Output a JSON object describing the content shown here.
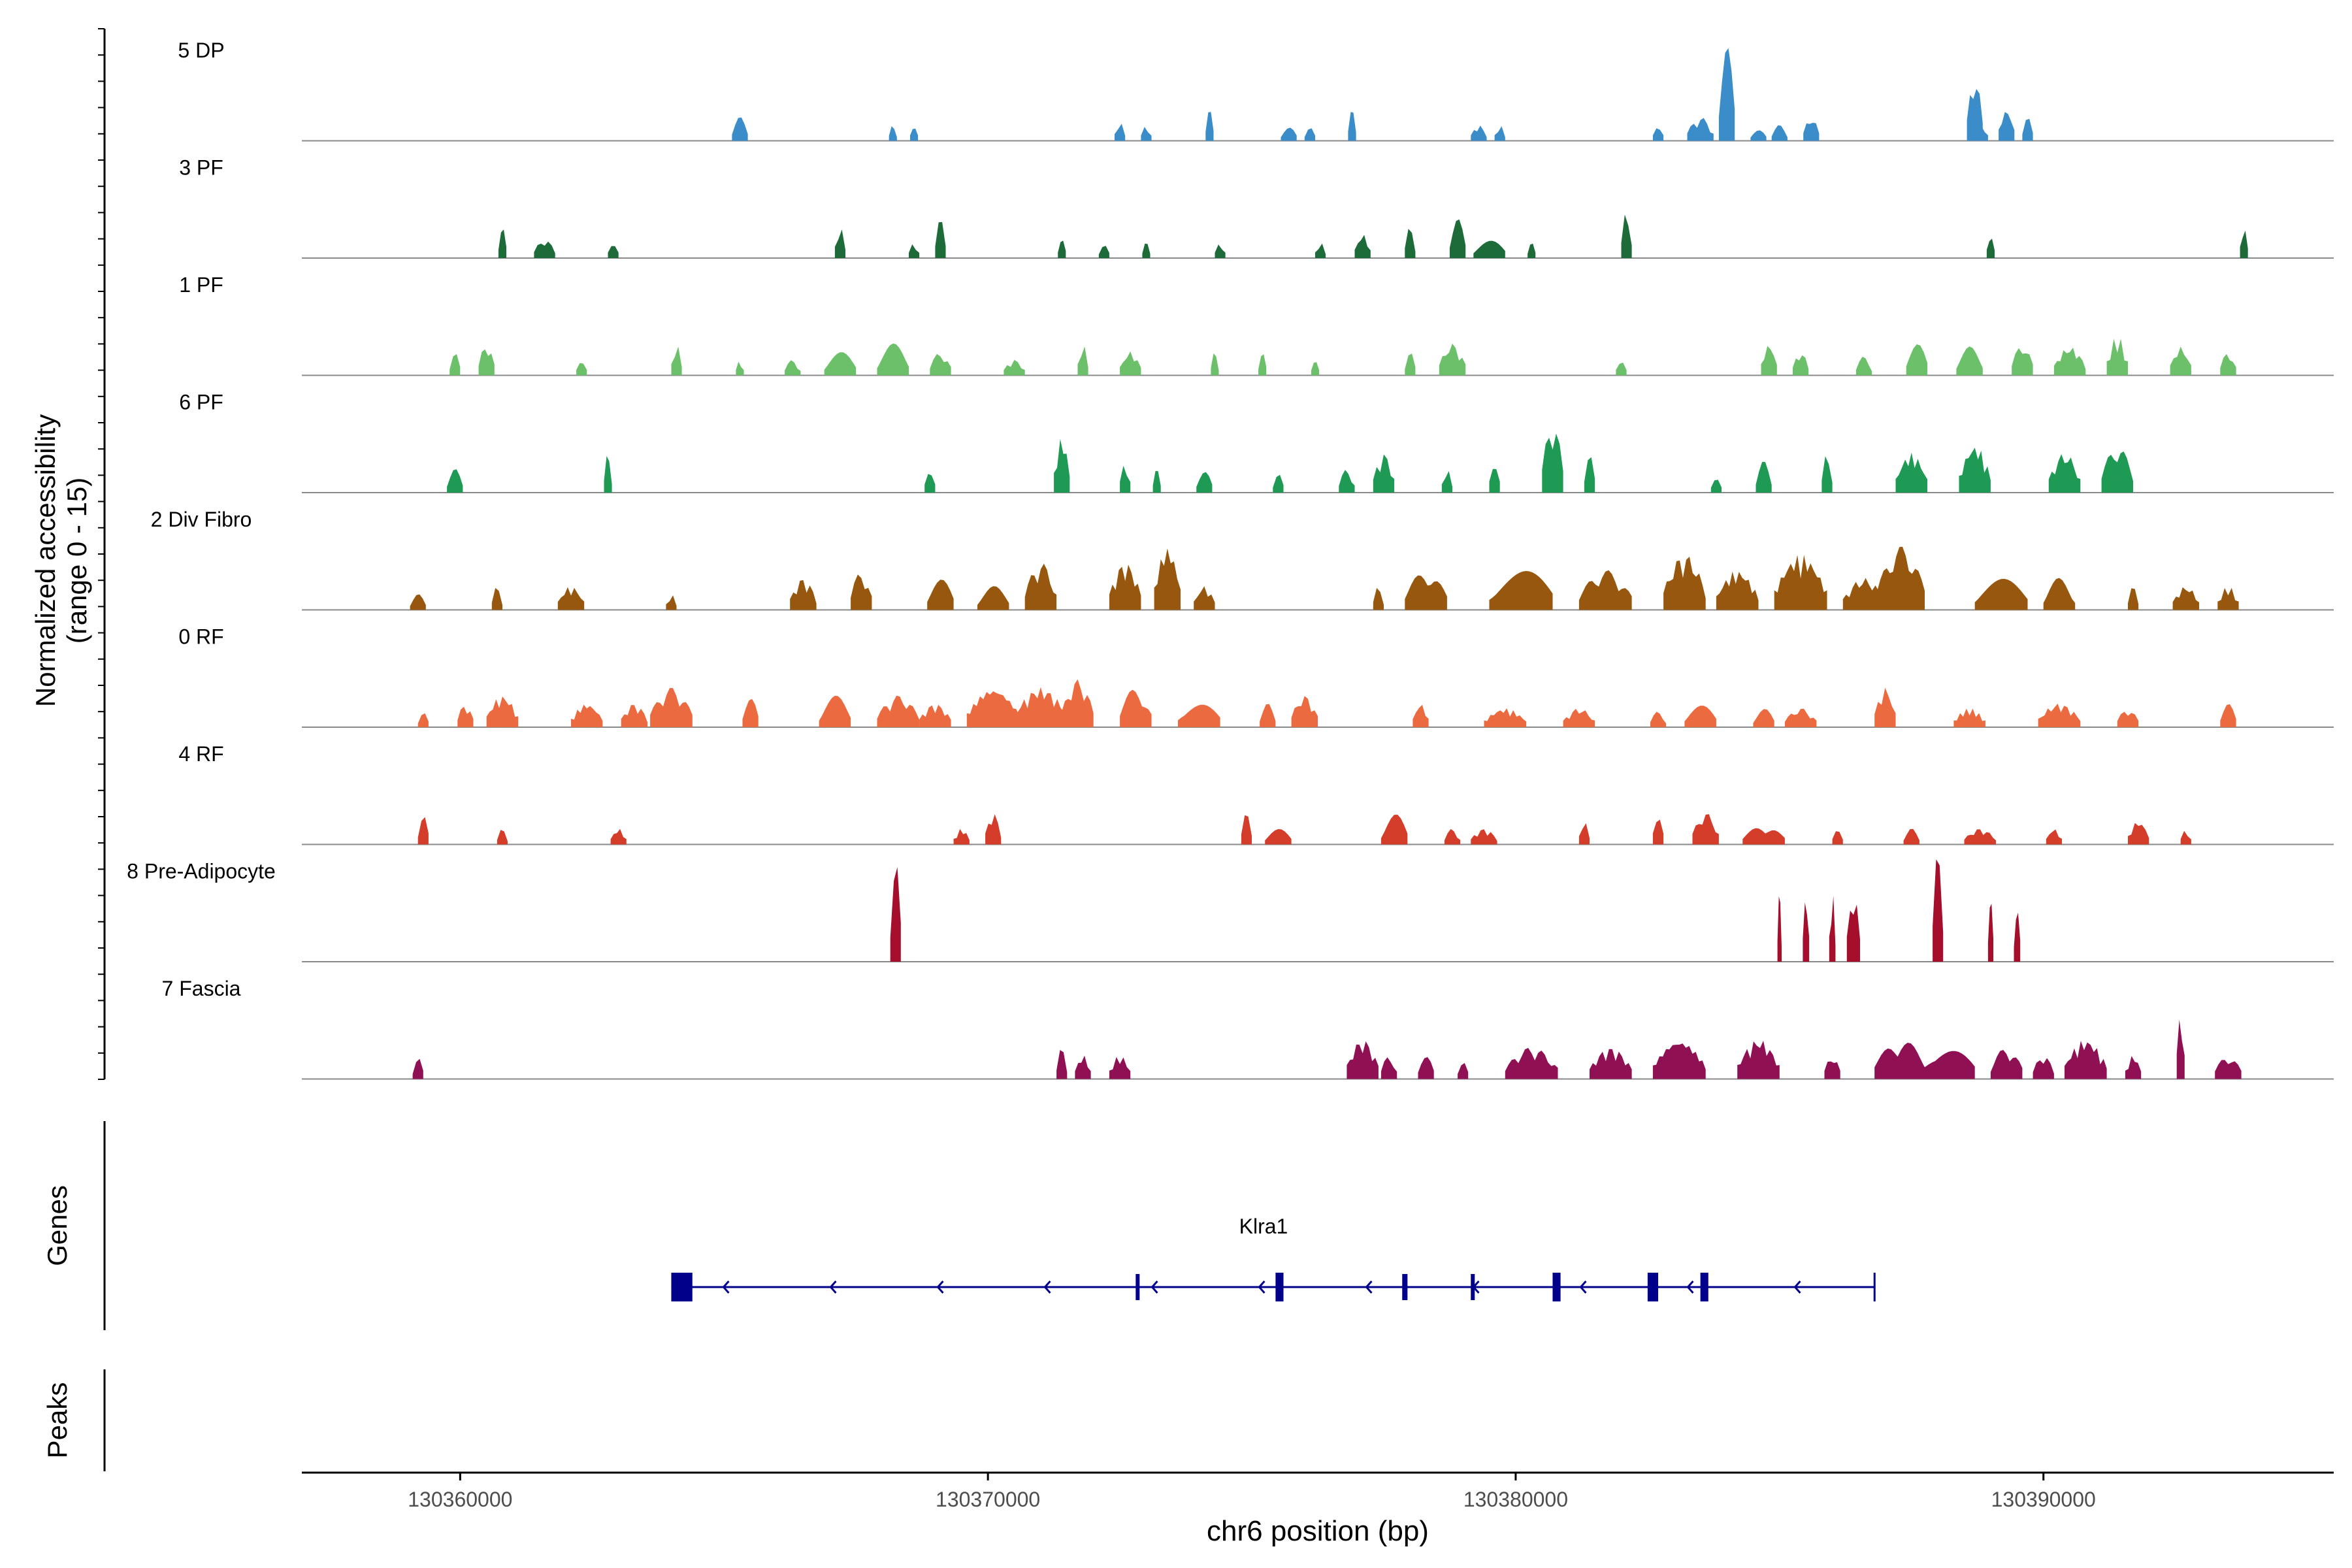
{
  "chart_data": {
    "type": "area",
    "chromosome": "chr6",
    "xlim": [
      130357000,
      130395500
    ],
    "x_ticks": [
      130360000,
      130370000,
      130380000,
      130390000
    ],
    "x_tick_labels": [
      "130360000",
      "130370000",
      "130380000",
      "130390000"
    ],
    "xlabel": "chr6 position (bp)",
    "ylabel_line1": "Normalized accessibility",
    "ylabel_line2": "(range 0 - 15)",
    "ylim": [
      0,
      15
    ],
    "tracks": [
      {
        "name": "5 DP",
        "color": "#3A8DC9",
        "peaks": [
          [
            130365300,
            0.3,
            1.5
          ],
          [
            130368200,
            0.15,
            1
          ],
          [
            130368600,
            0.15,
            1
          ],
          [
            130372500,
            0.2,
            1.2
          ],
          [
            130373000,
            0.2,
            1
          ],
          [
            130374200,
            0.15,
            2
          ],
          [
            130375700,
            0.3,
            1
          ],
          [
            130376100,
            0.2,
            1
          ],
          [
            130376900,
            0.15,
            2
          ],
          [
            130379300,
            0.3,
            1
          ],
          [
            130379700,
            0.2,
            1
          ],
          [
            130382700,
            0.2,
            1
          ],
          [
            130383500,
            0.5,
            1.5
          ],
          [
            130384000,
            0.3,
            6
          ],
          [
            130384600,
            0.3,
            1
          ],
          [
            130385000,
            0.3,
            1
          ],
          [
            130385600,
            0.3,
            1.5
          ],
          [
            130388800,
            0.3,
            1
          ],
          [
            130389300,
            0.3,
            2
          ],
          [
            130388700,
            0.3,
            4
          ],
          [
            130389700,
            0.2,
            1.5
          ]
        ]
      },
      {
        "name": "3 PF",
        "color": "#1E6B3A",
        "peaks": [
          [
            130360800,
            0.15,
            2
          ],
          [
            130361600,
            0.4,
            1.2
          ],
          [
            130362900,
            0.2,
            1
          ],
          [
            130367200,
            0.2,
            2
          ],
          [
            130368600,
            0.2,
            1
          ],
          [
            130369100,
            0.2,
            2.5
          ],
          [
            130371400,
            0.15,
            1.5
          ],
          [
            130372200,
            0.2,
            1
          ],
          [
            130373000,
            0.15,
            1
          ],
          [
            130374400,
            0.2,
            1
          ],
          [
            130376300,
            0.2,
            1
          ],
          [
            130377100,
            0.3,
            1.5
          ],
          [
            130378000,
            0.2,
            2
          ],
          [
            130378900,
            0.3,
            2.5
          ],
          [
            130379500,
            0.6,
            1.5
          ],
          [
            130380300,
            0.15,
            1
          ],
          [
            130382100,
            0.2,
            3
          ],
          [
            130389000,
            0.15,
            1.5
          ],
          [
            130393800,
            0.15,
            2
          ]
        ]
      },
      {
        "name": "1 PF",
        "color": "#6CC06A",
        "peaks": [
          [
            130359900,
            0.2,
            1.5
          ],
          [
            130360500,
            0.3,
            2
          ],
          [
            130362300,
            0.2,
            1
          ],
          [
            130364100,
            0.2,
            2
          ],
          [
            130365300,
            0.15,
            1
          ],
          [
            130366300,
            0.3,
            1
          ],
          [
            130367200,
            0.6,
            1.5
          ],
          [
            130368200,
            0.6,
            2
          ],
          [
            130369100,
            0.4,
            1.5
          ],
          [
            130370500,
            0.4,
            1
          ],
          [
            130371800,
            0.2,
            2
          ],
          [
            130372700,
            0.4,
            1.5
          ],
          [
            130374300,
            0.15,
            1.5
          ],
          [
            130375200,
            0.15,
            1.5
          ],
          [
            130376200,
            0.15,
            1.5
          ],
          [
            130378000,
            0.2,
            1.5
          ],
          [
            130378800,
            0.5,
            2
          ],
          [
            130382000,
            0.2,
            1
          ],
          [
            130384800,
            0.3,
            2
          ],
          [
            130385400,
            0.3,
            1.5
          ],
          [
            130386600,
            0.3,
            1.2
          ],
          [
            130387600,
            0.4,
            2.5
          ],
          [
            130388600,
            0.5,
            1.8
          ],
          [
            130389600,
            0.4,
            2
          ],
          [
            130390500,
            0.6,
            1.8
          ],
          [
            130391400,
            0.4,
            2.5
          ],
          [
            130392600,
            0.4,
            1.8
          ],
          [
            130393500,
            0.3,
            1.5
          ]
        ]
      },
      {
        "name": "6 PF",
        "color": "#1F9A55",
        "peaks": [
          [
            130359900,
            0.3,
            1.5
          ],
          [
            130362800,
            0.15,
            2.5
          ],
          [
            130368900,
            0.2,
            1.5
          ],
          [
            130371400,
            0.3,
            3.5
          ],
          [
            130372600,
            0.2,
            2
          ],
          [
            130373200,
            0.15,
            1.5
          ],
          [
            130374100,
            0.3,
            1.5
          ],
          [
            130375500,
            0.2,
            1.5
          ],
          [
            130376800,
            0.3,
            1.5
          ],
          [
            130377500,
            0.4,
            2.5
          ],
          [
            130378700,
            0.2,
            1.5
          ],
          [
            130379600,
            0.2,
            2
          ],
          [
            130380700,
            0.4,
            4.5
          ],
          [
            130381400,
            0.2,
            2.5
          ],
          [
            130383800,
            0.2,
            1.5
          ],
          [
            130384700,
            0.3,
            2
          ],
          [
            130385900,
            0.2,
            2.5
          ],
          [
            130387500,
            0.6,
            2.5
          ],
          [
            130388700,
            0.6,
            3
          ],
          [
            130390400,
            0.6,
            2.5
          ],
          [
            130391400,
            0.6,
            3
          ]
        ]
      },
      {
        "name": "2 Div Fibro",
        "color": "#97570E",
        "peaks": [
          [
            130359200,
            0.3,
            1
          ],
          [
            130360700,
            0.2,
            1.5
          ],
          [
            130362100,
            0.5,
            1.5
          ],
          [
            130364000,
            0.2,
            1
          ],
          [
            130366500,
            0.5,
            2
          ],
          [
            130367600,
            0.4,
            2.5
          ],
          [
            130369100,
            0.5,
            2
          ],
          [
            130370100,
            0.6,
            1.5
          ],
          [
            130371000,
            0.6,
            3
          ],
          [
            130372600,
            0.6,
            3
          ],
          [
            130373400,
            0.5,
            4
          ],
          [
            130374100,
            0.4,
            1.5
          ],
          [
            130377400,
            0.2,
            1.5
          ],
          [
            130378300,
            0.8,
            2.5
          ],
          [
            130380100,
            1.2,
            3
          ],
          [
            130381700,
            1.0,
            2.5
          ],
          [
            130383200,
            0.8,
            3.5
          ],
          [
            130384200,
            0.8,
            2.5
          ],
          [
            130385400,
            1.0,
            3.5
          ],
          [
            130386600,
            0.8,
            2
          ],
          [
            130387300,
            0.9,
            4
          ],
          [
            130389200,
            1.0,
            2
          ],
          [
            130390300,
            0.6,
            2
          ],
          [
            130391700,
            0.2,
            1.5
          ],
          [
            130392700,
            0.5,
            1.5
          ],
          [
            130393500,
            0.4,
            1.5
          ]
        ]
      },
      {
        "name": "0 RF",
        "color": "#EC6A3F",
        "peaks": [
          [
            130359300,
            0.2,
            1
          ],
          [
            130360100,
            0.3,
            1.5
          ],
          [
            130360800,
            0.6,
            2
          ],
          [
            130362400,
            0.6,
            1.5
          ],
          [
            130363300,
            0.5,
            1.5
          ],
          [
            130364000,
            0.8,
            2.5
          ],
          [
            130365500,
            0.3,
            2
          ],
          [
            130367100,
            0.6,
            2
          ],
          [
            130368300,
            0.8,
            2
          ],
          [
            130369000,
            0.6,
            1.5
          ],
          [
            130370100,
            1.0,
            2.5
          ],
          [
            130371000,
            1.0,
            2.5
          ],
          [
            130371700,
            0.6,
            3
          ],
          [
            130372800,
            0.6,
            2.5
          ],
          [
            130374000,
            0.8,
            2
          ],
          [
            130375300,
            0.3,
            1.5
          ],
          [
            130376000,
            0.5,
            2
          ],
          [
            130378200,
            0.3,
            1.5
          ],
          [
            130379800,
            0.8,
            1.2
          ],
          [
            130381200,
            0.6,
            1.2
          ],
          [
            130382700,
            0.3,
            1
          ],
          [
            130383500,
            0.6,
            1.5
          ],
          [
            130384700,
            0.4,
            1.2
          ],
          [
            130385400,
            0.6,
            1.2
          ],
          [
            130387000,
            0.4,
            2.5
          ],
          [
            130388600,
            0.6,
            1.2
          ],
          [
            130390300,
            0.8,
            1.5
          ],
          [
            130391600,
            0.4,
            1.2
          ],
          [
            130393500,
            0.3,
            1.5
          ]
        ]
      },
      {
        "name": "4 RF",
        "color": "#D43D2A",
        "peaks": [
          [
            130359300,
            0.2,
            2
          ],
          [
            130360800,
            0.2,
            1
          ],
          [
            130363000,
            0.3,
            1
          ],
          [
            130369500,
            0.3,
            1
          ],
          [
            130370100,
            0.3,
            2
          ],
          [
            130374900,
            0.2,
            2
          ],
          [
            130375500,
            0.5,
            1
          ],
          [
            130377700,
            0.5,
            2
          ],
          [
            130378800,
            0.3,
            1
          ],
          [
            130379400,
            0.5,
            1
          ],
          [
            130381300,
            0.2,
            1.5
          ],
          [
            130382700,
            0.2,
            2
          ],
          [
            130383600,
            0.5,
            2
          ],
          [
            130384700,
            0.8,
            1.2
          ],
          [
            130386100,
            0.2,
            1.5
          ],
          [
            130387500,
            0.3,
            1
          ],
          [
            130388800,
            0.6,
            1
          ],
          [
            130390200,
            0.3,
            1
          ],
          [
            130391800,
            0.4,
            1.5
          ],
          [
            130392700,
            0.2,
            1
          ]
        ]
      },
      {
        "name": "8 Pre-Adipocyte",
        "color": "#A50F2B",
        "peaks": [
          [
            130368250,
            0.2,
            7
          ],
          [
            130385000,
            0.08,
            4.5
          ],
          [
            130385500,
            0.12,
            4.5
          ],
          [
            130386000,
            0.12,
            4.5
          ],
          [
            130386400,
            0.25,
            4.5
          ],
          [
            130388000,
            0.2,
            7
          ],
          [
            130389000,
            0.1,
            4.5
          ],
          [
            130389500,
            0.12,
            4.5
          ]
        ]
      },
      {
        "name": "7 Fascia",
        "color": "#901054",
        "peaks": [
          [
            130359200,
            0.2,
            1.5
          ],
          [
            130371400,
            0.2,
            2
          ],
          [
            130371800,
            0.3,
            1.5
          ],
          [
            130372500,
            0.4,
            1.5
          ],
          [
            130377100,
            0.6,
            2.5
          ],
          [
            130377600,
            0.3,
            1.5
          ],
          [
            130378300,
            0.3,
            1.5
          ],
          [
            130379000,
            0.2,
            1.5
          ],
          [
            130380300,
            1.0,
            2
          ],
          [
            130381800,
            0.8,
            2
          ],
          [
            130383100,
            1.0,
            2.5
          ],
          [
            130384600,
            0.8,
            2.5
          ],
          [
            130386000,
            0.3,
            1.5
          ],
          [
            130387300,
            1.0,
            2.5
          ],
          [
            130388200,
            1.0,
            2.5
          ],
          [
            130389300,
            0.6,
            2
          ],
          [
            130390000,
            0.4,
            1.5
          ],
          [
            130390800,
            0.8,
            2.5
          ],
          [
            130391700,
            0.3,
            1.5
          ],
          [
            130392600,
            0.15,
            4.5
          ],
          [
            130393500,
            0.5,
            1.5
          ]
        ]
      }
    ],
    "genes_track_label": "Genes",
    "peaks_track_label": "Peaks",
    "gene": {
      "name": "Klra1",
      "strand": "-",
      "start": 130364000,
      "end": 130386800,
      "color": "#00008B",
      "exons": [
        [
          130364000,
          130364400
        ],
        [
          130372800,
          130372850
        ],
        [
          130375450,
          130375600
        ],
        [
          130377850,
          130377950
        ],
        [
          130379150,
          130379200
        ],
        [
          130380700,
          130380850
        ],
        [
          130382500,
          130382700
        ],
        [
          130383500,
          130383650
        ]
      ]
    }
  }
}
